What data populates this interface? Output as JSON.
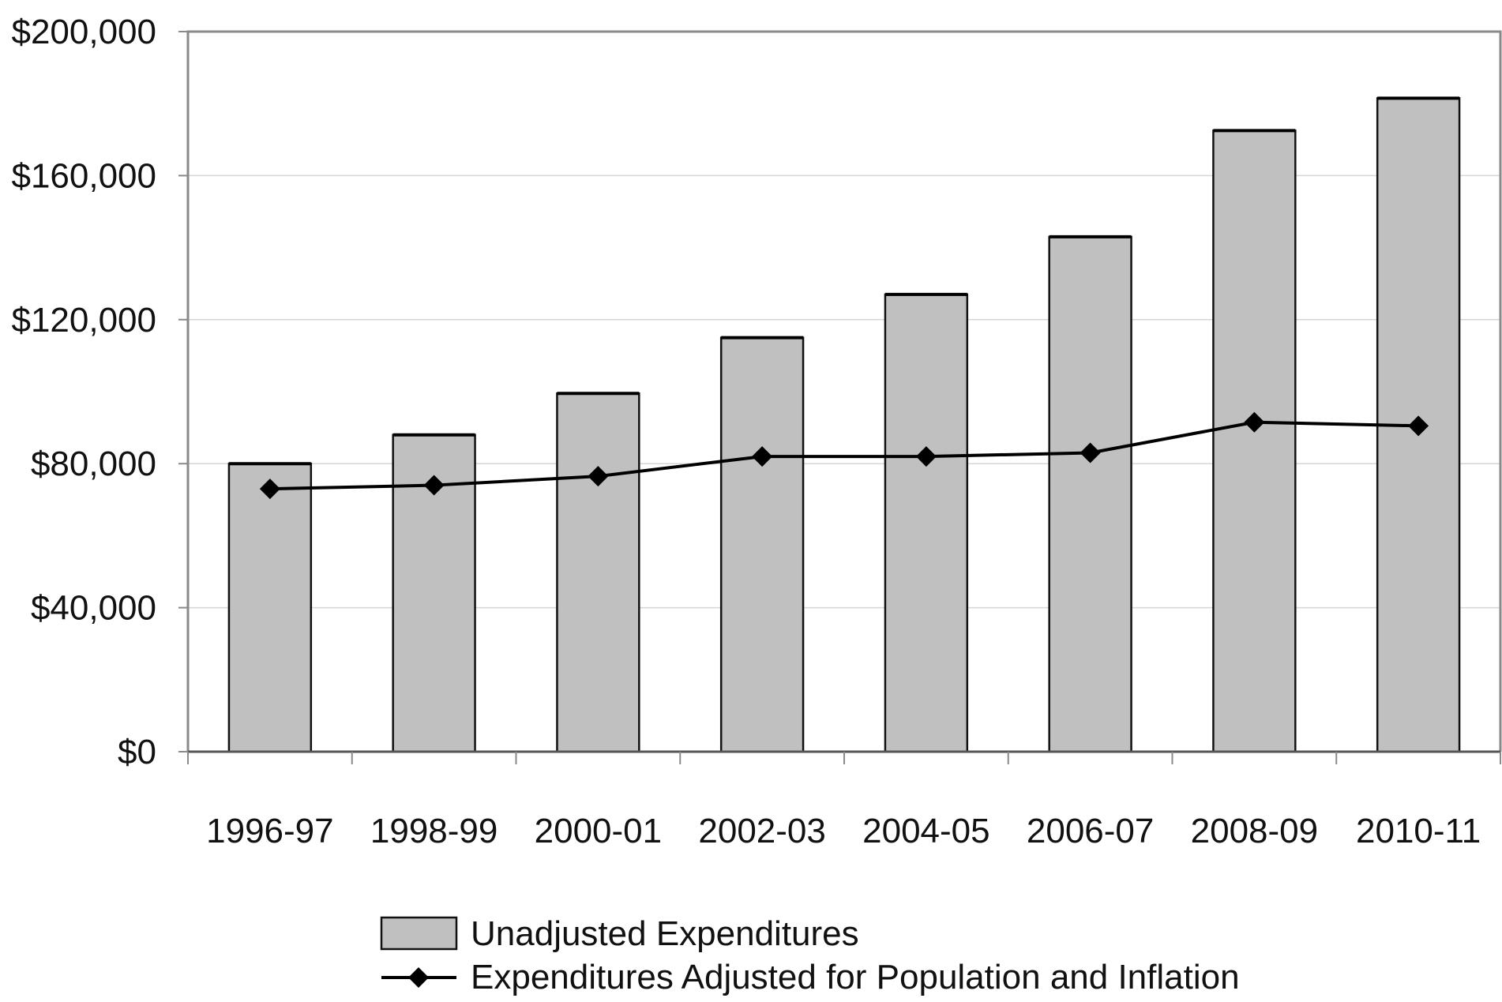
{
  "chart_data": {
    "type": "bar",
    "categories": [
      "1996-97",
      "1998-99",
      "2000-01",
      "2002-03",
      "2004-05",
      "2006-07",
      "2008-09",
      "2010-11"
    ],
    "series": [
      {
        "name": "Unadjusted Expenditures",
        "kind": "bar",
        "color": "#c0c0c0",
        "values": [
          80000,
          88000,
          99500,
          115000,
          127000,
          143000,
          172500,
          181500
        ]
      },
      {
        "name": "Expenditures Adjusted for Population and Inflation",
        "kind": "line",
        "color": "#000000",
        "marker": "diamond",
        "values": [
          73000,
          74000,
          76500,
          82000,
          82000,
          83000,
          91500,
          90500
        ]
      }
    ],
    "ylim": [
      0,
      200000
    ],
    "yticks": [
      0,
      40000,
      80000,
      120000,
      160000,
      200000
    ],
    "ytick_labels": [
      "$0",
      "$40,000",
      "$80,000",
      "$120,000",
      "$160,000",
      "$200,000"
    ],
    "grid": true,
    "legend_position": "bottom",
    "title": "",
    "xlabel": "",
    "ylabel": ""
  }
}
